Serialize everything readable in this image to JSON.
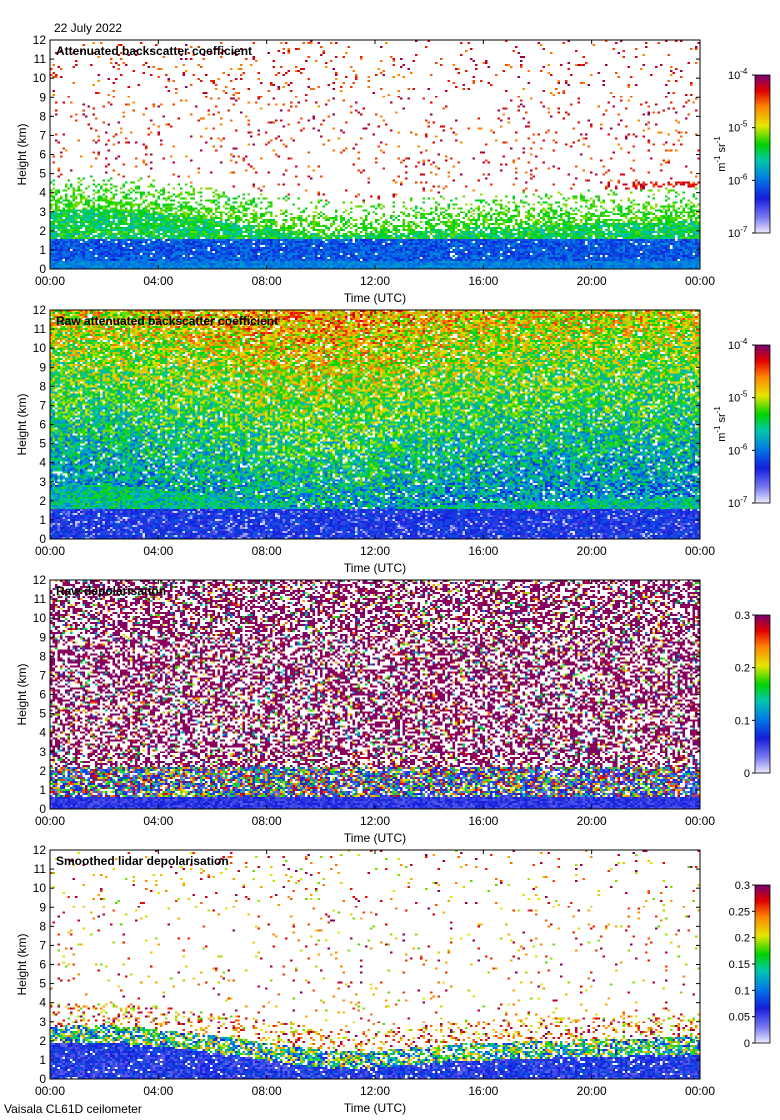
{
  "date": "22 July 2022",
  "footer": "Vaisala CL61D ceilometer",
  "chart_data": [
    {
      "type": "heatmap",
      "title": "Attenuated backscatter coefficient",
      "xlabel": "Time (UTC)",
      "ylabel": "Height (km)",
      "xticks": [
        "00:00",
        "04:00",
        "08:00",
        "12:00",
        "16:00",
        "20:00",
        "00:00"
      ],
      "yticks": [
        "0",
        "1",
        "2",
        "3",
        "4",
        "5",
        "6",
        "7",
        "8",
        "9",
        "10",
        "11",
        "12"
      ],
      "xlim": [
        "00:00",
        "24:00"
      ],
      "ylim": [
        0,
        12
      ],
      "scale": "log",
      "colorbar": {
        "label": "m-1 sr-1",
        "ticks": [
          {
            "base": "10",
            "exp": "-4",
            "value": 0.0001
          },
          {
            "base": "10",
            "exp": "-5",
            "value": 1e-05
          },
          {
            "base": "10",
            "exp": "-6",
            "value": 1e-06
          },
          {
            "base": "10",
            "exp": "-7",
            "value": 1e-07
          }
        ]
      }
    },
    {
      "type": "heatmap",
      "title": "Raw attenuated backscatter coefficient",
      "xlabel": "Time (UTC)",
      "ylabel": "Height (km)",
      "xticks": [
        "00:00",
        "04:00",
        "08:00",
        "12:00",
        "16:00",
        "20:00",
        "00:00"
      ],
      "yticks": [
        "0",
        "1",
        "2",
        "3",
        "4",
        "5",
        "6",
        "7",
        "8",
        "9",
        "10",
        "11",
        "12"
      ],
      "xlim": [
        "00:00",
        "24:00"
      ],
      "ylim": [
        0,
        12
      ],
      "scale": "log",
      "colorbar": {
        "label": "m-1 sr-1",
        "ticks": [
          {
            "base": "10",
            "exp": "-4",
            "value": 0.0001
          },
          {
            "base": "10",
            "exp": "-5",
            "value": 1e-05
          },
          {
            "base": "10",
            "exp": "-6",
            "value": 1e-06
          },
          {
            "base": "10",
            "exp": "-7",
            "value": 1e-07
          }
        ]
      }
    },
    {
      "type": "heatmap",
      "title": "Raw depolarisation",
      "xlabel": "Time (UTC)",
      "ylabel": "Height (km)",
      "xticks": [
        "00:00",
        "04:00",
        "08:00",
        "12:00",
        "16:00",
        "20:00",
        "00:00"
      ],
      "yticks": [
        "0",
        "1",
        "2",
        "3",
        "4",
        "5",
        "6",
        "7",
        "8",
        "9",
        "10",
        "11",
        "12"
      ],
      "xlim": [
        "00:00",
        "24:00"
      ],
      "ylim": [
        0,
        12
      ],
      "scale": "linear",
      "colorbar": {
        "label": "",
        "ticks": [
          {
            "base": "0.3",
            "exp": "",
            "value": 0.3
          },
          {
            "base": "0.2",
            "exp": "",
            "value": 0.2
          },
          {
            "base": "0.1",
            "exp": "",
            "value": 0.1
          },
          {
            "base": "0",
            "exp": "",
            "value": 0
          }
        ]
      }
    },
    {
      "type": "heatmap",
      "title": "Smoothed lidar depolarisation",
      "xlabel": "Time (UTC)",
      "ylabel": "Height (km)",
      "xticks": [
        "00:00",
        "04:00",
        "08:00",
        "12:00",
        "16:00",
        "20:00",
        "00:00"
      ],
      "yticks": [
        "0",
        "1",
        "2",
        "3",
        "4",
        "5",
        "6",
        "7",
        "8",
        "9",
        "10",
        "11",
        "12"
      ],
      "xlim": [
        "00:00",
        "24:00"
      ],
      "ylim": [
        0,
        12
      ],
      "scale": "linear",
      "colorbar": {
        "label": "",
        "ticks": [
          {
            "base": "0.3",
            "exp": "",
            "value": 0.3
          },
          {
            "base": "0.25",
            "exp": "",
            "value": 0.25
          },
          {
            "base": "0.2",
            "exp": "",
            "value": 0.2
          },
          {
            "base": "0.15",
            "exp": "",
            "value": 0.15
          },
          {
            "base": "0.1",
            "exp": "",
            "value": 0.1
          },
          {
            "base": "0.05",
            "exp": "",
            "value": 0.05
          },
          {
            "base": "0",
            "exp": "",
            "value": 0
          }
        ]
      }
    }
  ]
}
